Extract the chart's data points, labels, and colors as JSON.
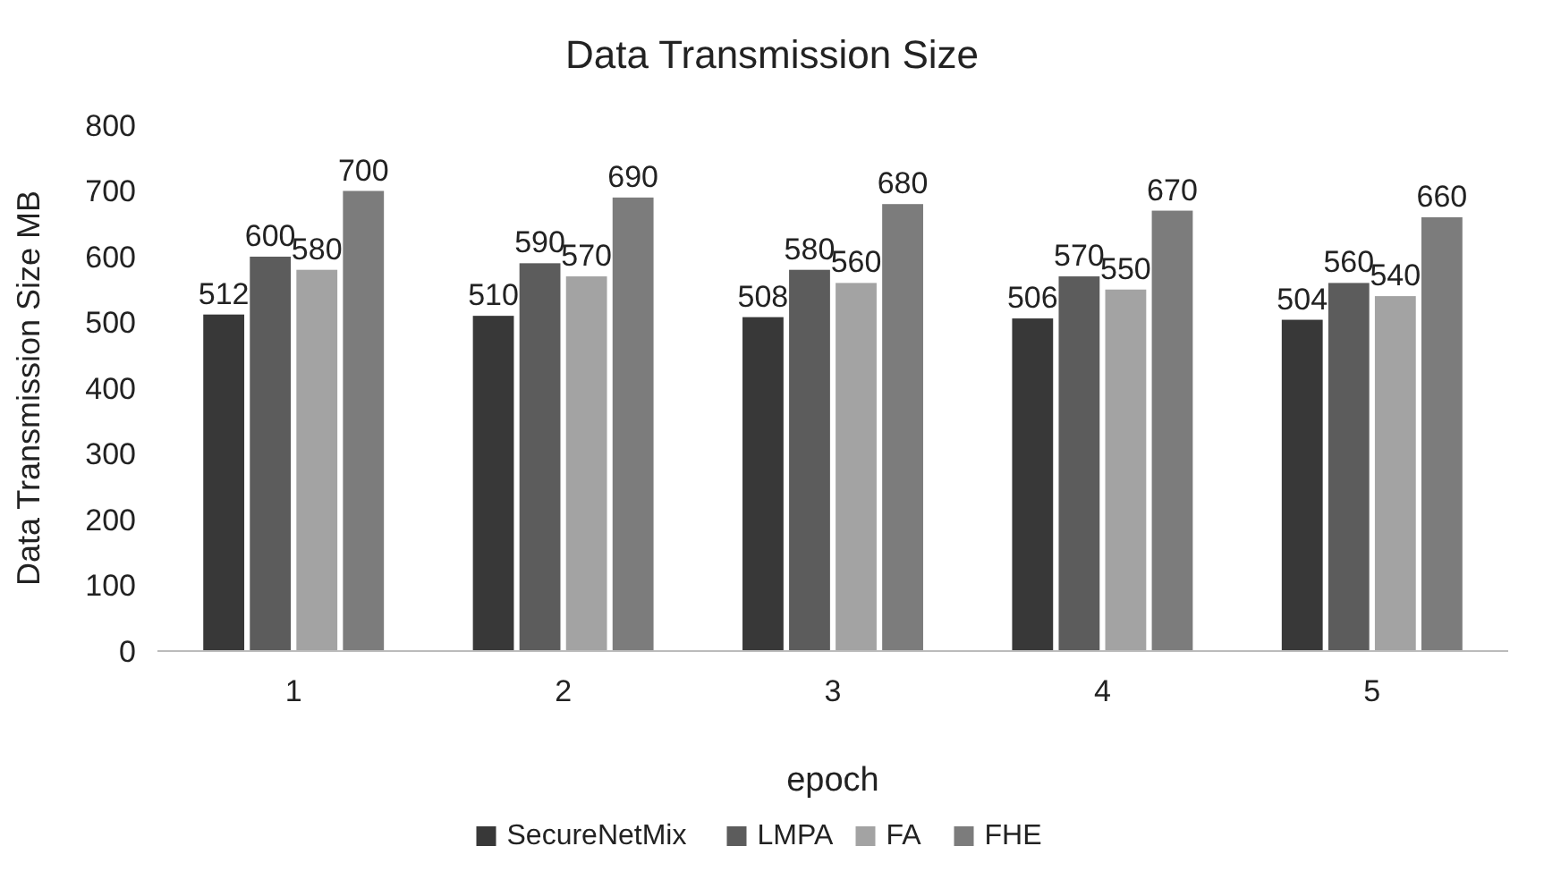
{
  "chart_data": {
    "type": "bar",
    "title": "Data Transmission Size",
    "xlabel": "epoch",
    "ylabel": "Data Transmission Size MB",
    "categories": [
      "1",
      "2",
      "3",
      "4",
      "5"
    ],
    "series": [
      {
        "name": "SecureNetMix",
        "color": "#383838",
        "values": [
          512,
          510,
          508,
          506,
          504
        ]
      },
      {
        "name": "LMPA",
        "color": "#5c5c5c",
        "values": [
          600,
          590,
          580,
          570,
          560
        ]
      },
      {
        "name": "FA",
        "color": "#a3a3a3",
        "values": [
          580,
          570,
          560,
          550,
          540
        ]
      },
      {
        "name": "FHE",
        "color": "#7c7c7c",
        "values": [
          700,
          690,
          680,
          670,
          660
        ]
      }
    ],
    "ylim": [
      0,
      800
    ],
    "yticks": [
      0,
      100,
      200,
      300,
      400,
      500,
      600,
      700,
      800
    ],
    "data_labels": true,
    "legend": "bottom",
    "grid": false
  }
}
